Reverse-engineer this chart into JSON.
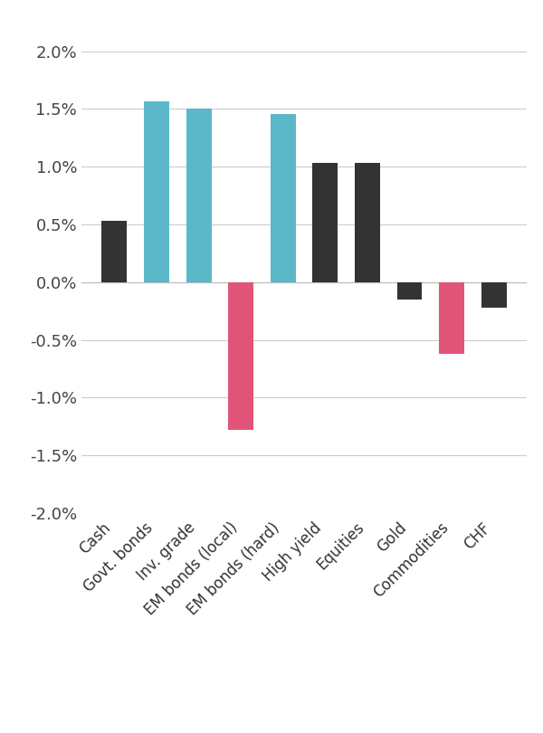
{
  "categories": [
    "Cash",
    "Govt. bonds",
    "Inv. grade",
    "EM bonds (local)",
    "EM bonds (hard)",
    "High yield",
    "Equities",
    "Gold",
    "Commodities",
    "CHF"
  ],
  "values": [
    0.0053,
    0.0157,
    0.015,
    -0.0128,
    0.0146,
    0.0103,
    0.0103,
    -0.0015,
    -0.0062,
    -0.0022
  ],
  "colors": [
    "#333333",
    "#5bb8c9",
    "#5bb8c9",
    "#e05577",
    "#5bb8c9",
    "#333333",
    "#333333",
    "#333333",
    "#e05577",
    "#333333"
  ],
  "ylim": [
    -0.02,
    0.02
  ],
  "yticks": [
    -0.02,
    -0.015,
    -0.01,
    -0.005,
    0.0,
    0.005,
    0.01,
    0.015,
    0.02
  ],
  "background_color": "#ffffff",
  "grid_color": "#cccccc",
  "bar_width": 0.6,
  "tick_fontsize": 13,
  "xlabel_fontsize": 12
}
